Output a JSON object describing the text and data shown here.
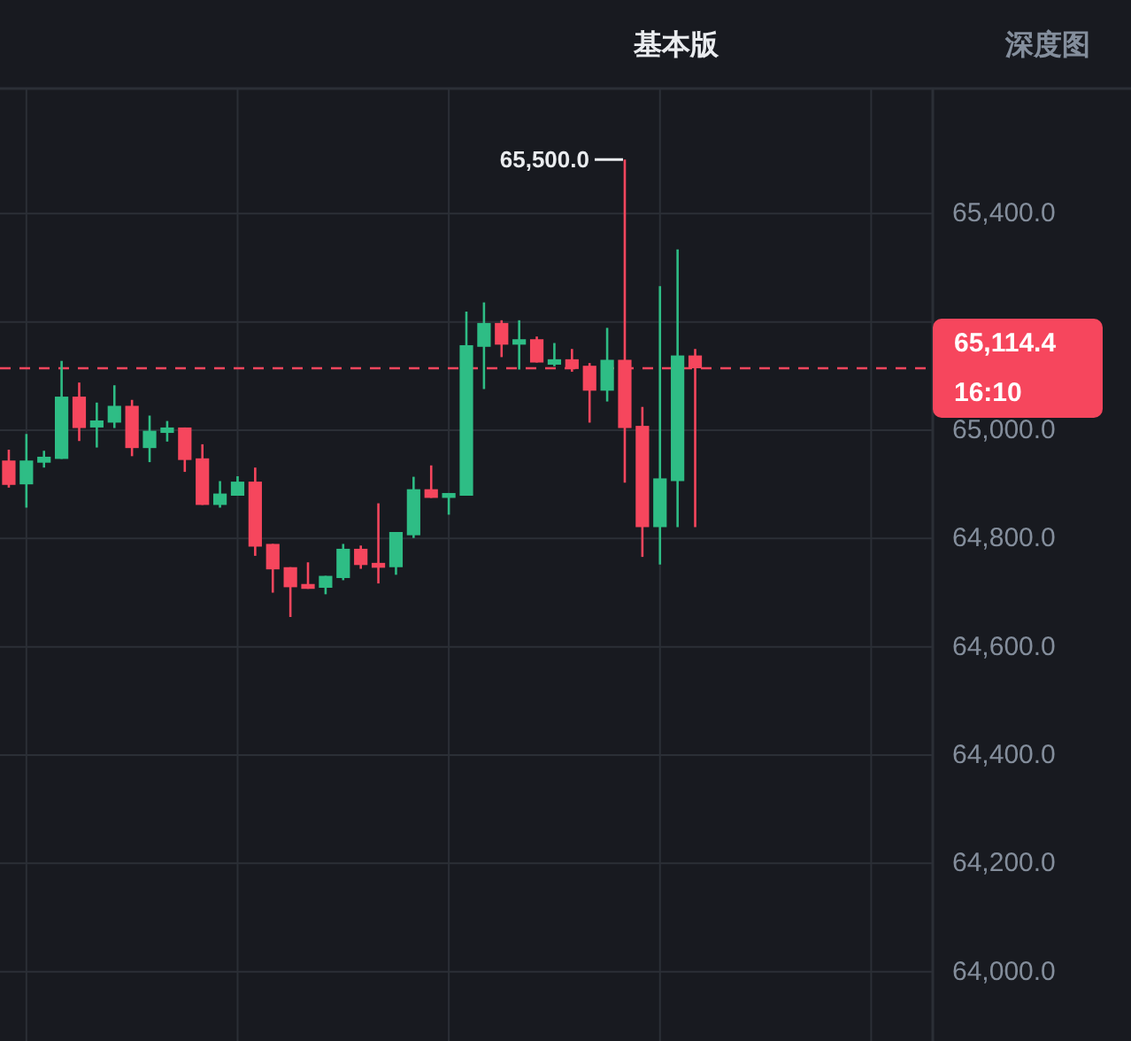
{
  "chart_data": {
    "type": "candlestick",
    "categories": [
      null,
      null,
      null,
      null,
      null,
      null,
      null,
      null,
      null,
      null,
      null,
      null,
      null,
      null,
      null,
      null,
      null,
      null,
      null,
      null,
      null,
      null,
      null,
      null,
      null,
      null,
      null,
      null,
      null,
      null,
      null,
      null,
      null,
      null,
      null,
      null,
      null,
      null,
      null,
      null,
      null,
      null,
      null,
      null,
      null,
      null,
      null,
      null,
      null,
      null,
      null,
      null,
      null
    ],
    "ohlc": [
      [
        64944,
        64964,
        64894,
        64899
      ],
      [
        64900,
        64993,
        64857,
        64944
      ],
      [
        64940,
        64962,
        64931,
        64951
      ],
      [
        64947,
        65128,
        64947,
        65062
      ],
      [
        65062,
        65088,
        64980,
        65004
      ],
      [
        65005,
        65051,
        64968,
        65018
      ],
      [
        65014,
        65083,
        65004,
        65045
      ],
      [
        65045,
        65056,
        64952,
        64967
      ],
      [
        64967,
        65027,
        64941,
        64999
      ],
      [
        64995,
        65017,
        64979,
        65005
      ],
      [
        65005,
        65005,
        64923,
        64945
      ],
      [
        64948,
        64974,
        64862,
        64862
      ],
      [
        64862,
        64906,
        64857,
        64883
      ],
      [
        64879,
        64915,
        64879,
        64905
      ],
      [
        64905,
        64931,
        64768,
        64785
      ],
      [
        64790,
        64790,
        64700,
        64743
      ],
      [
        64747,
        64747,
        64655,
        64710
      ],
      [
        64716,
        64756,
        64707,
        64707
      ],
      [
        64709,
        64731,
        64697,
        64731
      ],
      [
        64727,
        64790,
        64723,
        64781
      ],
      [
        64781,
        64787,
        64744,
        64751
      ],
      [
        64755,
        64865,
        64717,
        64746
      ],
      [
        64747,
        64812,
        64733,
        64812
      ],
      [
        64806,
        64914,
        64801,
        64891
      ],
      [
        64891,
        64935,
        64875,
        64875
      ],
      [
        64875,
        64884,
        64844,
        64884
      ],
      [
        64879,
        65219,
        64879,
        65157
      ],
      [
        65154,
        65236,
        65076,
        65198
      ],
      [
        65198,
        65203,
        65135,
        65158
      ],
      [
        65158,
        65203,
        65112,
        65168
      ],
      [
        65168,
        65173,
        65125,
        65125
      ],
      [
        65121,
        65161,
        65118,
        65131
      ],
      [
        65131,
        65150,
        65108,
        65113
      ],
      [
        65119,
        65124,
        65014,
        65073
      ],
      [
        65073,
        65189,
        65053,
        65130
      ],
      [
        65130,
        65500,
        64903,
        65004
      ],
      [
        65008,
        65043,
        64766,
        64821
      ],
      [
        64821,
        65266,
        64752,
        64911
      ],
      [
        64906,
        65334,
        64821,
        65138
      ],
      [
        65138,
        65150,
        64821,
        65114.4
      ],
      null,
      null,
      null,
      null,
      null,
      null,
      null,
      null,
      null,
      null,
      null,
      null,
      null
    ],
    "ylim": [
      63872,
      65631
    ],
    "yticks": [
      {
        "value": 64000,
        "label": "64,000.0"
      },
      {
        "value": 64200,
        "label": "64,200.0"
      },
      {
        "value": 64400,
        "label": "64,400.0"
      },
      {
        "value": 64600,
        "label": "64,600.0"
      },
      {
        "value": 64800,
        "label": "64,800.0"
      },
      {
        "value": 65000,
        "label": "65,000.0"
      },
      {
        "value": 65200,
        "label": null
      },
      {
        "value": 65400,
        "label": "65,400.0"
      }
    ],
    "grid": true,
    "tick_labels": "y",
    "ref_lines": [
      {
        "axis": "y",
        "value": 65114.4,
        "label": "65,114.4",
        "color": "#f6465d",
        "line_style": "dashed"
      }
    ],
    "annotations": [
      "基本版",
      "深度图",
      "65,500.0",
      "16:10"
    ]
  }
}
